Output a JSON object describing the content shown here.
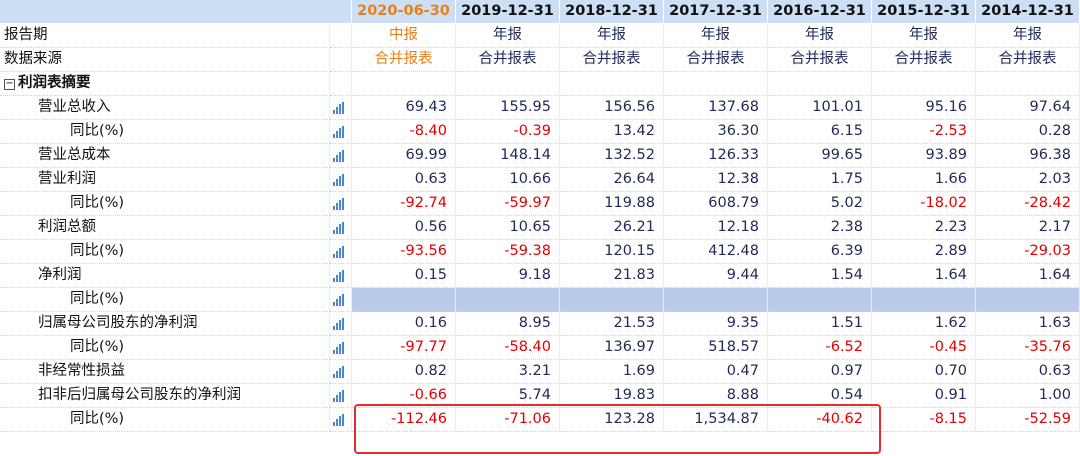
{
  "columns": [
    "2020-06-30",
    "2019-12-31",
    "2018-12-31",
    "2017-12-31",
    "2016-12-31",
    "2015-12-31",
    "2014-12-31"
  ],
  "rows": [
    {
      "label": "报告期",
      "kind": "meta",
      "values": [
        "中报",
        "年报",
        "年报",
        "年报",
        "年报",
        "年报",
        "年报"
      ]
    },
    {
      "label": "数据来源",
      "kind": "meta",
      "values": [
        "合并报表",
        "合并报表",
        "合并报表",
        "合并报表",
        "合并报表",
        "合并报表",
        "合并报表"
      ]
    },
    {
      "label": "利润表摘要",
      "kind": "section"
    },
    {
      "label": "营业总收入",
      "kind": "item",
      "values": [
        "69.43",
        "155.95",
        "156.56",
        "137.68",
        "101.01",
        "95.16",
        "97.64"
      ]
    },
    {
      "label": "同比(%)",
      "kind": "sub",
      "values": [
        "-8.40",
        "-0.39",
        "13.42",
        "36.30",
        "6.15",
        "-2.53",
        "0.28"
      ]
    },
    {
      "label": "营业总成本",
      "kind": "item",
      "values": [
        "69.99",
        "148.14",
        "132.52",
        "126.33",
        "99.65",
        "93.89",
        "96.38"
      ]
    },
    {
      "label": "营业利润",
      "kind": "item",
      "values": [
        "0.63",
        "10.66",
        "26.64",
        "12.38",
        "1.75",
        "1.66",
        "2.03"
      ]
    },
    {
      "label": "同比(%)",
      "kind": "sub",
      "values": [
        "-92.74",
        "-59.97",
        "119.88",
        "608.79",
        "5.02",
        "-18.02",
        "-28.42"
      ]
    },
    {
      "label": "利润总额",
      "kind": "item",
      "values": [
        "0.56",
        "10.65",
        "26.21",
        "12.18",
        "2.38",
        "2.23",
        "2.17"
      ]
    },
    {
      "label": "同比(%)",
      "kind": "sub",
      "values": [
        "-93.56",
        "-59.38",
        "120.15",
        "412.48",
        "6.39",
        "2.89",
        "-29.03"
      ]
    },
    {
      "label": "净利润",
      "kind": "item",
      "values": [
        "0.15",
        "9.18",
        "21.83",
        "9.44",
        "1.54",
        "1.64",
        "1.64"
      ]
    },
    {
      "label": "同比(%)",
      "kind": "sub"
    },
    {
      "label": "归属母公司股东的净利润",
      "kind": "item",
      "values": [
        "0.16",
        "8.95",
        "21.53",
        "9.35",
        "1.51",
        "1.62",
        "1.63"
      ]
    },
    {
      "label": "同比(%)",
      "kind": "sub",
      "values": [
        "-97.77",
        "-58.40",
        "136.97",
        "518.57",
        "-6.52",
        "-0.45",
        "-35.76"
      ]
    },
    {
      "label": "非经常性损益",
      "kind": "item",
      "values": [
        "0.82",
        "3.21",
        "1.69",
        "0.47",
        "0.97",
        "0.70",
        "0.63"
      ]
    },
    {
      "label": "扣非后归属母公司股东的净利润",
      "kind": "item",
      "values": [
        "-0.66",
        "5.74",
        "19.83",
        "8.88",
        "0.54",
        "0.91",
        "1.00"
      ]
    },
    {
      "label": "同比(%)",
      "kind": "sub",
      "values": [
        "-112.46",
        "-71.06",
        "123.28",
        "1,534.87",
        "-40.62",
        "-8.15",
        "-52.59"
      ]
    }
  ]
}
